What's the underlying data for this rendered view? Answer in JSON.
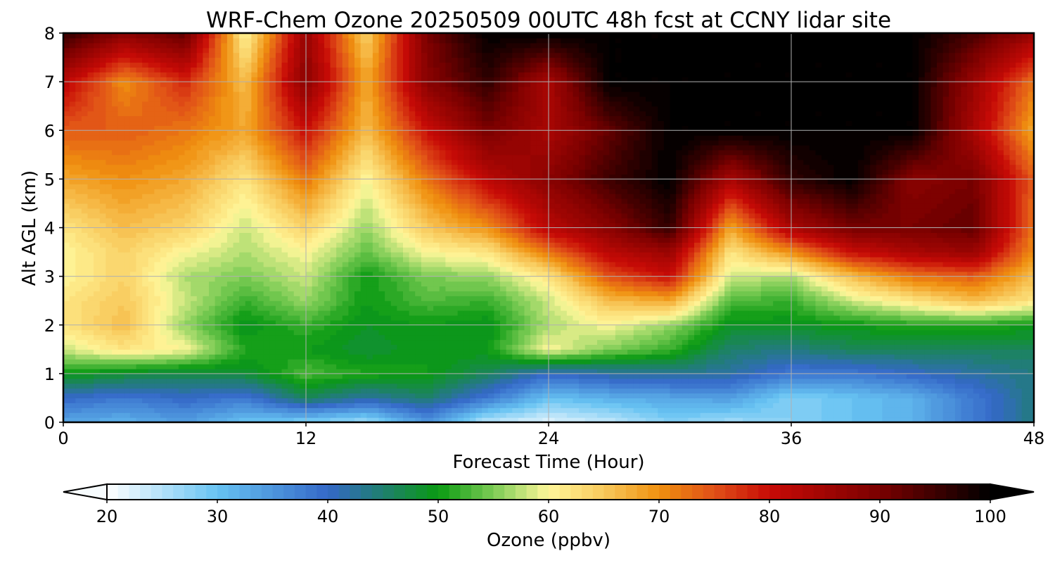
{
  "chart_data": {
    "type": "heatmap",
    "title": "WRF-Chem Ozone  20250509 00UTC 48h fcst at CCNY lidar site",
    "xlabel": "Forecast Time (Hour)",
    "ylabel": "Alt AGL (km)",
    "xlim": [
      0,
      48
    ],
    "ylim": [
      0,
      8
    ],
    "xticks": [
      "0",
      "12",
      "24",
      "36",
      "48"
    ],
    "yticks": [
      "0",
      "1",
      "2",
      "3",
      "4",
      "5",
      "6",
      "7",
      "8"
    ],
    "grid": true,
    "colorbar": {
      "label": "Ozone  (ppbv)",
      "range": [
        20,
        100
      ],
      "ticks": [
        "20",
        "30",
        "40",
        "50",
        "60",
        "70",
        "80",
        "90",
        "100"
      ],
      "extend": "both",
      "stops": [
        {
          "v": 20,
          "c": "#ffffff"
        },
        {
          "v": 30,
          "c": "#67c3f2"
        },
        {
          "v": 40,
          "c": "#3468c8"
        },
        {
          "v": 45,
          "c": "#1f7f6e"
        },
        {
          "v": 50,
          "c": "#0a9a12"
        },
        {
          "v": 55,
          "c": "#7ccc55"
        },
        {
          "v": 60,
          "c": "#fff79a"
        },
        {
          "v": 65,
          "c": "#f8c95c"
        },
        {
          "v": 70,
          "c": "#f0900f"
        },
        {
          "v": 75,
          "c": "#e05018"
        },
        {
          "v": 80,
          "c": "#c80b06"
        },
        {
          "v": 90,
          "c": "#7a0000"
        },
        {
          "v": 100,
          "c": "#000000"
        }
      ]
    },
    "x_hours": [
      0,
      3,
      6,
      9,
      12,
      15,
      18,
      21,
      24,
      27,
      30,
      33,
      36,
      39,
      42,
      45,
      48
    ],
    "y_km": [
      0,
      0.5,
      1,
      1.5,
      2,
      2.5,
      3,
      3.5,
      4,
      5,
      6,
      7,
      8
    ],
    "z_ppbv": [
      [
        33,
        32,
        34,
        30,
        28,
        26,
        35,
        24,
        22,
        24,
        28,
        26,
        28,
        30,
        32,
        38,
        44
      ],
      [
        40,
        38,
        40,
        38,
        46,
        42,
        45,
        38,
        30,
        32,
        33,
        34,
        28,
        30,
        32,
        38,
        44
      ],
      [
        50,
        48,
        47,
        48,
        53,
        51,
        50,
        46,
        40,
        42,
        43,
        42,
        38,
        38,
        40,
        42,
        44
      ],
      [
        58,
        62,
        60,
        51,
        50,
        48,
        50,
        50,
        60,
        55,
        52,
        45,
        44,
        46,
        46,
        46,
        46
      ],
      [
        62,
        66,
        56,
        49,
        52,
        49,
        50,
        49,
        57,
        60,
        56,
        49,
        49,
        50,
        51,
        51,
        50
      ],
      [
        62,
        65,
        58,
        52,
        56,
        50,
        53,
        52,
        58,
        66,
        68,
        53,
        52,
        58,
        62,
        66,
        62
      ],
      [
        60,
        64,
        57,
        55,
        58,
        50,
        55,
        56,
        62,
        75,
        80,
        58,
        57,
        66,
        72,
        74,
        66
      ],
      [
        60,
        64,
        60,
        57,
        60,
        54,
        60,
        62,
        72,
        82,
        86,
        62,
        70,
        80,
        84,
        86,
        70
      ],
      [
        62,
        66,
        64,
        58,
        64,
        56,
        65,
        70,
        82,
        88,
        96,
        68,
        84,
        90,
        90,
        92,
        72
      ],
      [
        68,
        70,
        68,
        62,
        72,
        60,
        72,
        82,
        88,
        95,
        100,
        84,
        96,
        100,
        88,
        90,
        74
      ],
      [
        74,
        74,
        72,
        68,
        80,
        66,
        80,
        90,
        84,
        92,
        100,
        100,
        100,
        100,
        100,
        84,
        68
      ],
      [
        82,
        70,
        78,
        66,
        88,
        68,
        88,
        96,
        84,
        100,
        100,
        100,
        100,
        100,
        100,
        86,
        72
      ],
      [
        96,
        88,
        92,
        60,
        86,
        64,
        90,
        100,
        100,
        100,
        100,
        100,
        100,
        100,
        100,
        94,
        86
      ]
    ]
  }
}
